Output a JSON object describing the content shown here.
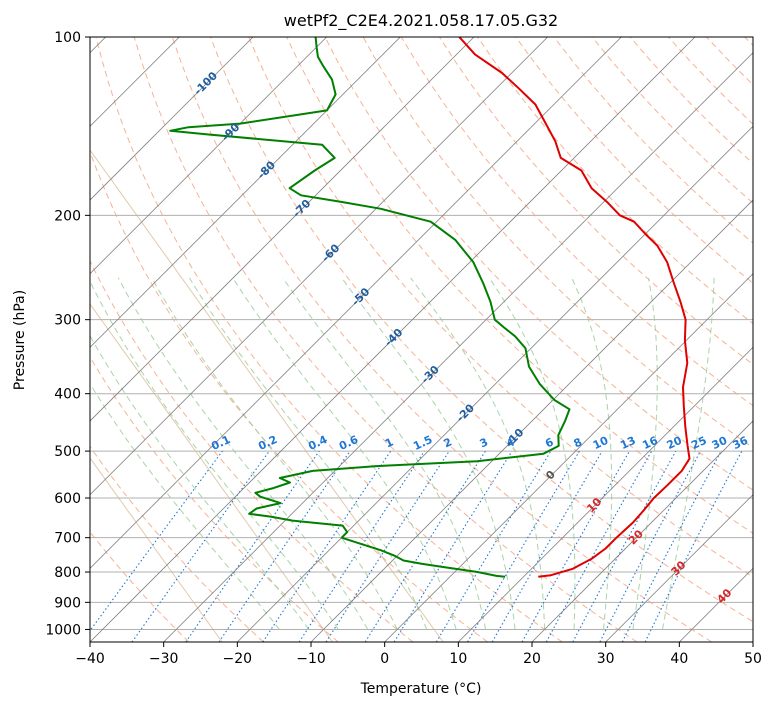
{
  "chart_data": {
    "type": "line",
    "title": "wetPf2_C2E4.2021.058.17.05.G32",
    "xlabel": "Temperature (°C)",
    "ylabel": "Pressure (hPa)",
    "xlim": [
      -40,
      50
    ],
    "ylim": [
      1050,
      100
    ],
    "y_scale": "log",
    "skew": true,
    "grid": true,
    "x_ticks": [
      -40,
      -30,
      -20,
      -10,
      0,
      10,
      20,
      30,
      40,
      50
    ],
    "y_ticks": [
      100,
      200,
      300,
      400,
      500,
      600,
      700,
      800,
      900,
      1000
    ],
    "dry_adiabat_labels": [
      "-100",
      "-90",
      "-80",
      "-70",
      "-60",
      "-50",
      "-40",
      "-30",
      "-20",
      "-10",
      "0",
      "10",
      "20",
      "30",
      "40"
    ],
    "mixing_ratio_labels": [
      "0.1",
      "0.2",
      "0.4",
      "0.6",
      "1",
      "1.5",
      "2",
      "3",
      "4",
      "6",
      "8",
      "10",
      "13",
      "16",
      "20",
      "25",
      "30",
      "36"
    ],
    "colors": {
      "temperature": "#e00000",
      "dewpoint": "#007f00",
      "isotherm": "#808080",
      "dry_adiabat": "#f4a582",
      "moist_adiabat": "#99cc99",
      "mixing_ratio": "#1f77d4",
      "isohume": "#d6b48a"
    },
    "series": [
      {
        "key": "temperature",
        "points": [
          [
            12.0,
            815
          ],
          [
            13.5,
            810
          ],
          [
            15.6,
            790
          ],
          [
            16.8,
            760
          ],
          [
            17.3,
            730
          ],
          [
            17.3,
            700
          ],
          [
            17.5,
            660
          ],
          [
            17.3,
            630
          ],
          [
            17.0,
            600
          ],
          [
            17.1,
            570
          ],
          [
            17.1,
            540
          ],
          [
            16.5,
            515
          ],
          [
            14.5,
            490
          ],
          [
            11.6,
            455
          ],
          [
            8.6,
            420
          ],
          [
            5.9,
            390
          ],
          [
            3.2,
            355
          ],
          [
            -0.2,
            325
          ],
          [
            -2.9,
            300
          ],
          [
            -6.0,
            280
          ],
          [
            -9.5,
            260
          ],
          [
            -13.2,
            240
          ],
          [
            -16.8,
            225
          ],
          [
            -20.0,
            215
          ],
          [
            -23.2,
            205
          ],
          [
            -26.0,
            200
          ],
          [
            -29.5,
            190
          ],
          [
            -33.5,
            180
          ],
          [
            -37.3,
            168
          ],
          [
            -41.8,
            160
          ],
          [
            -44.8,
            150
          ],
          [
            -48.5,
            140
          ],
          [
            -52.5,
            130
          ],
          [
            -57.0,
            122
          ],
          [
            -61.3,
            115
          ],
          [
            -67.5,
            107
          ],
          [
            -72.0,
            100
          ]
        ]
      },
      {
        "key": "dewpoint",
        "points": [
          [
            7.5,
            815
          ],
          [
            6.2,
            812
          ],
          [
            3.1,
            800
          ],
          [
            -2.0,
            785
          ],
          [
            -5.5,
            775
          ],
          [
            -8.5,
            765
          ],
          [
            -10.5,
            750
          ],
          [
            -13.0,
            735
          ],
          [
            -17.0,
            715
          ],
          [
            -20.0,
            700
          ],
          [
            -20.0,
            685
          ],
          [
            -21.5,
            668
          ],
          [
            -29.0,
            655
          ],
          [
            -32.5,
            645
          ],
          [
            -35.8,
            638
          ],
          [
            -35.5,
            625
          ],
          [
            -33.0,
            612
          ],
          [
            -36.6,
            597
          ],
          [
            -37.8,
            588
          ],
          [
            -36.1,
            578
          ],
          [
            -34.5,
            565
          ],
          [
            -36.5,
            555
          ],
          [
            -33.0,
            540
          ],
          [
            -25.0,
            530
          ],
          [
            -12.0,
            520
          ],
          [
            -4.0,
            505
          ],
          [
            -3.0,
            490
          ],
          [
            -4.5,
            470
          ],
          [
            -5.5,
            445
          ],
          [
            -6.5,
            425
          ],
          [
            -9.8,
            410
          ],
          [
            -14.0,
            385
          ],
          [
            -17.8,
            360
          ],
          [
            -20.8,
            335
          ],
          [
            -23.8,
            320
          ],
          [
            -26.3,
            310
          ],
          [
            -28.8,
            300
          ],
          [
            -31.8,
            280
          ],
          [
            -35.4,
            260
          ],
          [
            -39.5,
            240
          ],
          [
            -45.0,
            220
          ],
          [
            -50.8,
            205
          ],
          [
            -59.3,
            195
          ],
          [
            -65.4,
            190
          ],
          [
            -72.0,
            185
          ],
          [
            -74.5,
            180
          ],
          [
            -73.5,
            168
          ],
          [
            -72.5,
            160
          ],
          [
            -76.0,
            152
          ],
          [
            -93.0,
            146
          ],
          [
            -98.5,
            144
          ],
          [
            -96.5,
            142
          ],
          [
            -90.0,
            140
          ],
          [
            -80.0,
            133
          ],
          [
            -81.0,
            125
          ],
          [
            -83.5,
            118
          ],
          [
            -86.5,
            112
          ],
          [
            -88.5,
            108
          ],
          [
            -90.0,
            104
          ],
          [
            -91.5,
            100
          ]
        ]
      }
    ]
  }
}
